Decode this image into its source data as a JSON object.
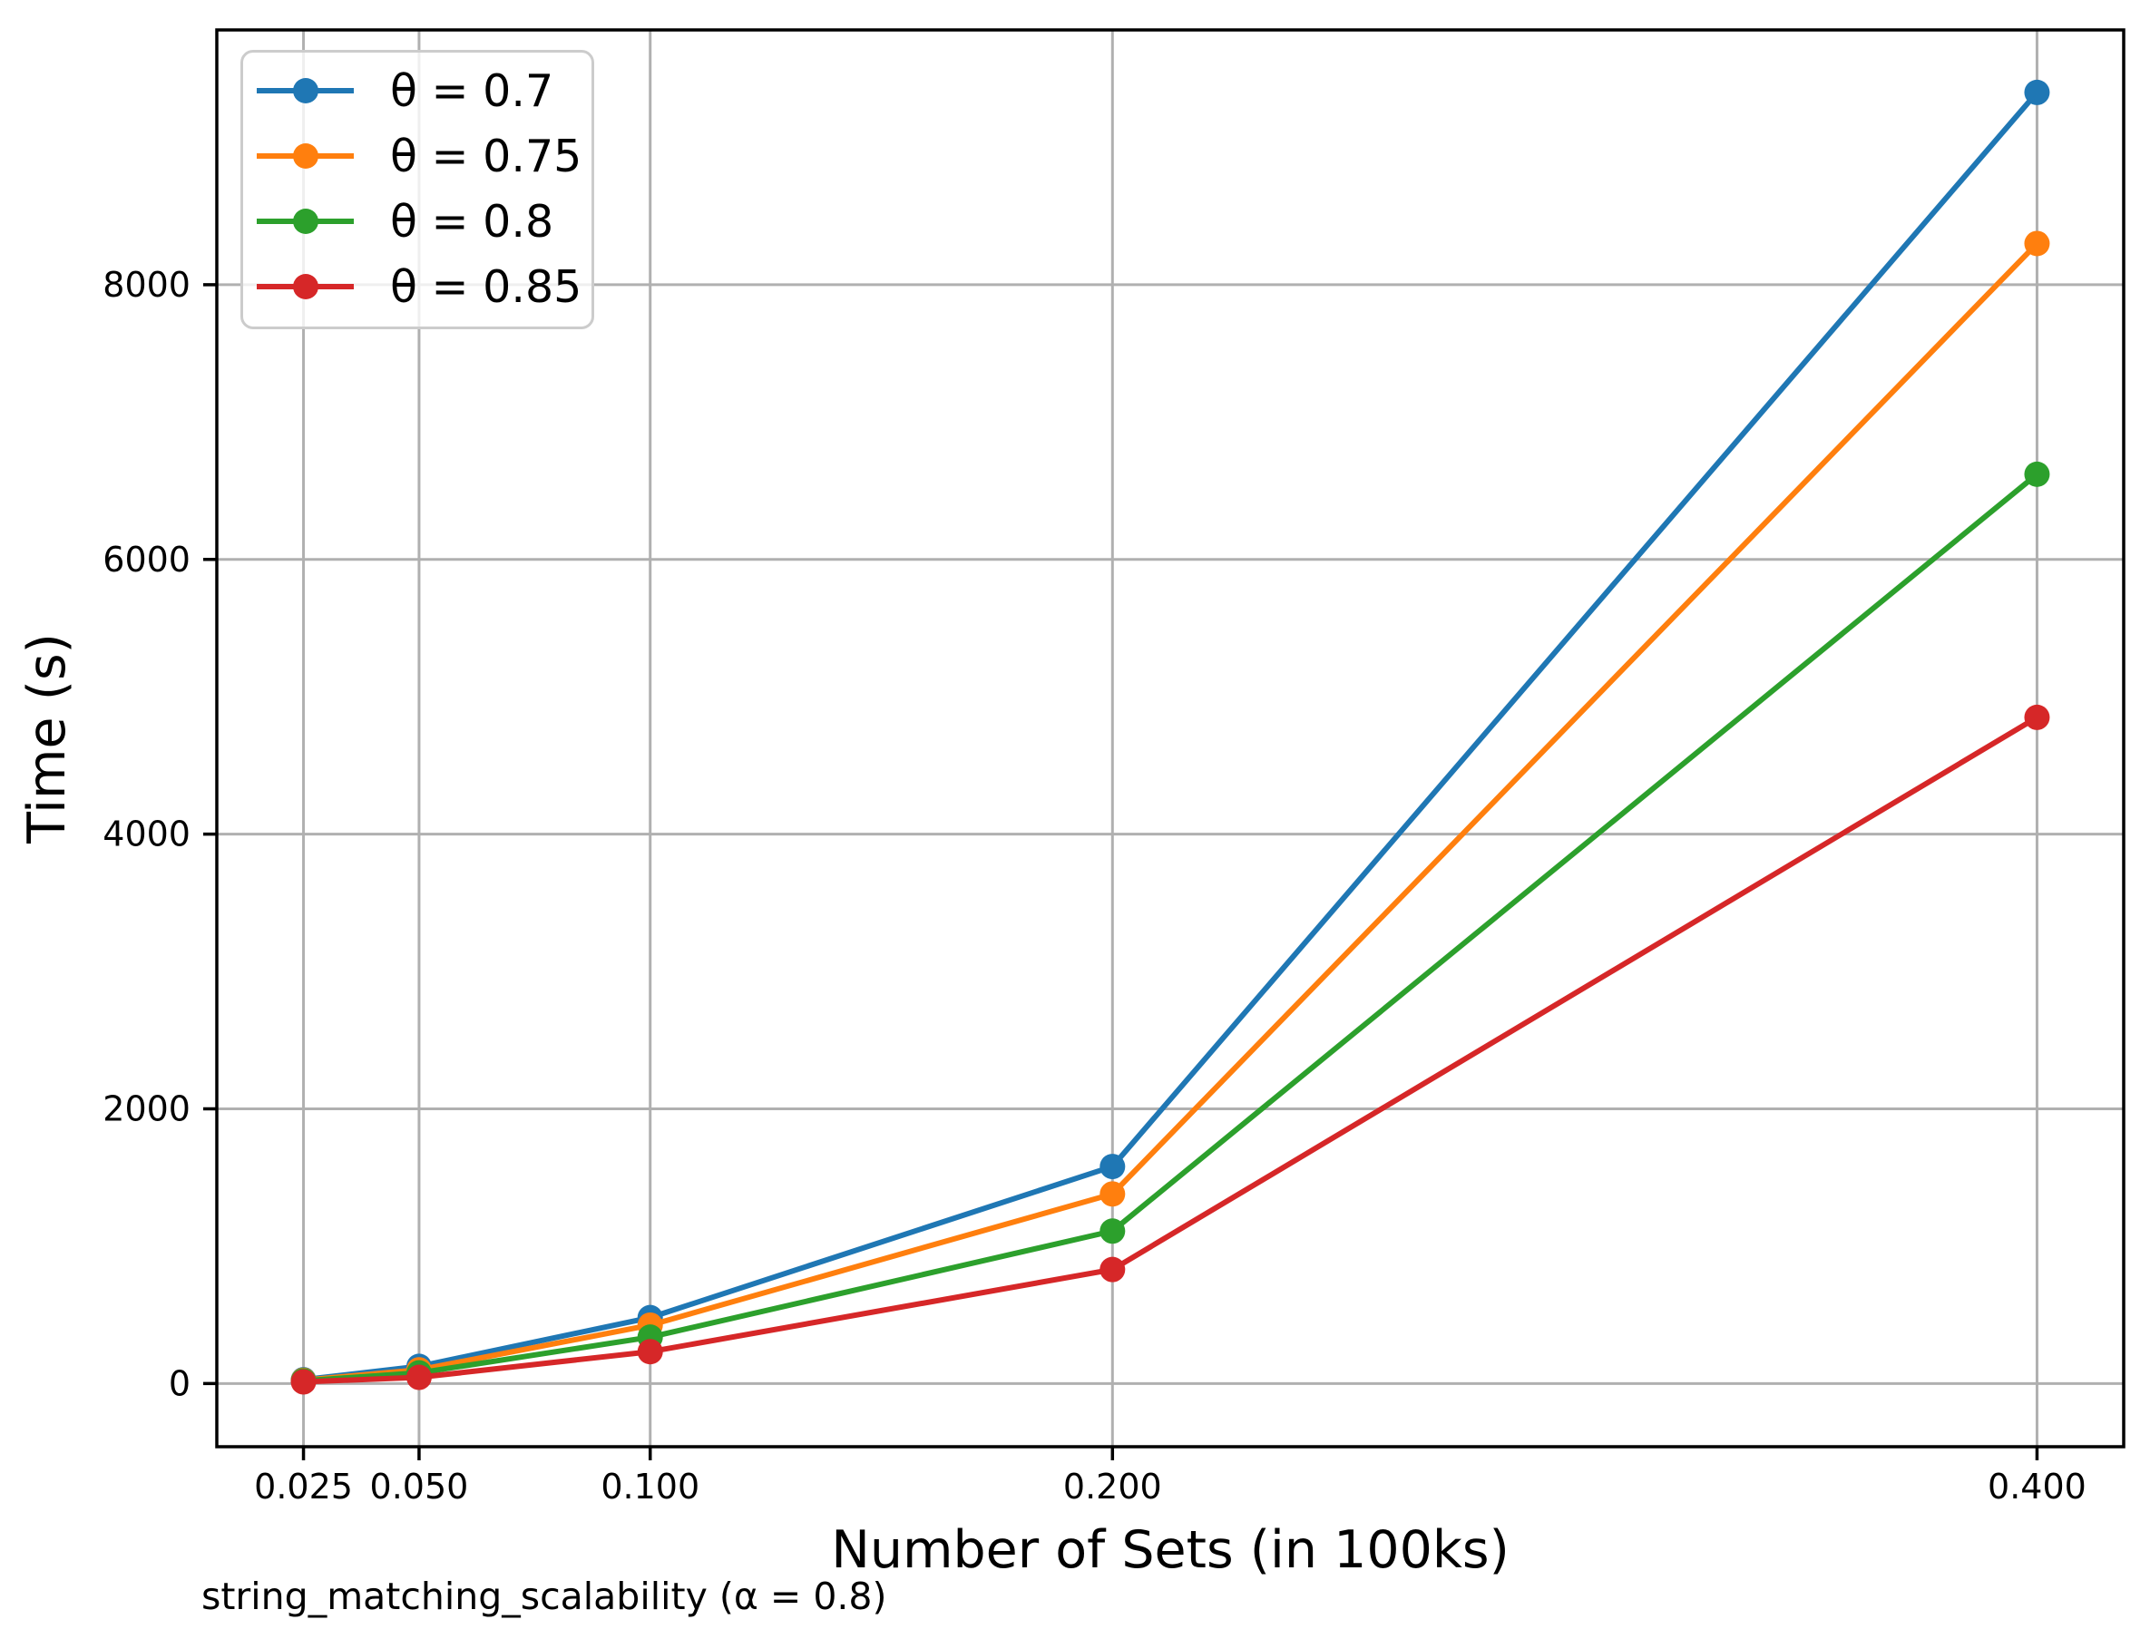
{
  "chart_data": {
    "type": "line",
    "title": "",
    "xlabel": "Number of Sets (in 100ks)",
    "ylabel": "Time (s)",
    "caption": "string_matching_scalability (α = 0.8)",
    "x": [
      0.025,
      0.05,
      0.1,
      0.2,
      0.4
    ],
    "x_tick_labels": [
      "0.025",
      "0.050",
      "0.100",
      "0.200",
      "0.400"
    ],
    "y_ticks": [
      0,
      2000,
      4000,
      6000,
      8000
    ],
    "y_tick_labels": [
      "0",
      "2000",
      "4000",
      "6000",
      "8000"
    ],
    "xlim": [
      0.00625,
      0.41875
    ],
    "ylim": [
      -460,
      9855
    ],
    "grid": true,
    "grid_color": "#b0b0b0",
    "spine_color": "#000000",
    "legend_position": "upper left",
    "series": [
      {
        "name": "θ = 0.7",
        "color": "#1f77b4",
        "values": [
          28,
          125,
          480,
          1580,
          9400
        ]
      },
      {
        "name": "θ = 0.75",
        "color": "#ff7f0e",
        "values": [
          24,
          100,
          425,
          1380,
          8300
        ]
      },
      {
        "name": "θ = 0.8",
        "color": "#2ca02c",
        "values": [
          20,
          78,
          338,
          1110,
          6620
        ]
      },
      {
        "name": "θ = 0.85",
        "color": "#d62728",
        "values": [
          12,
          45,
          232,
          830,
          4850
        ]
      }
    ]
  }
}
